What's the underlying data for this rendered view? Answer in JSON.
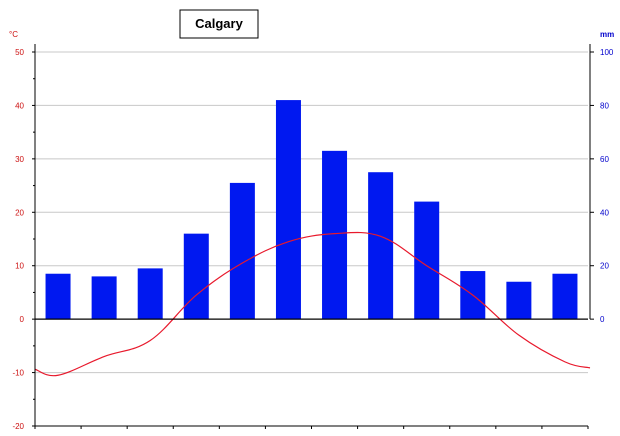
{
  "chart_data": {
    "type": "bar",
    "title": "Calgary",
    "categories": [
      "",
      "",
      "",
      "",
      "",
      "",
      "",
      "",
      "",
      "",
      "",
      ""
    ],
    "series": [
      {
        "type": "bar",
        "axis": "right",
        "values": [
          17,
          16,
          19,
          32,
          51,
          82,
          63,
          55,
          44,
          18,
          14,
          17
        ]
      },
      {
        "type": "line",
        "axis": "left",
        "values": [
          -10.5,
          -7,
          -4,
          4.5,
          10.5,
          14.5,
          16,
          15.5,
          10,
          4.5,
          -3,
          -8
        ]
      }
    ],
    "y_left": {
      "label": "°C",
      "range": [
        -20,
        50
      ],
      "ticks": [
        {
          "value": 50,
          "label": "50"
        },
        {
          "value": 40,
          "label": "40"
        },
        {
          "value": 30,
          "label": "30"
        },
        {
          "value": 20,
          "label": "20"
        },
        {
          "value": 10,
          "label": "10"
        },
        {
          "value": 0,
          "label": "0"
        },
        {
          "value": -10,
          "label": "-10"
        },
        {
          "value": -20,
          "label": "-20"
        }
      ]
    },
    "y_right": {
      "label": "mm",
      "range": [
        0,
        100
      ],
      "ticks": [
        {
          "value": 100,
          "label": "100"
        },
        {
          "value": 80,
          "label": "80"
        },
        {
          "value": 60,
          "label": "60"
        },
        {
          "value": 40,
          "label": "40"
        },
        {
          "value": 20,
          "label": "20"
        },
        {
          "value": 0,
          "label": "0"
        }
      ]
    },
    "grid": true,
    "legend": "none",
    "colors": {
      "bars": "#0018f0",
      "line": "#e8192c",
      "left_axis_text": "#cc1111",
      "right_axis_text": "#0000cc",
      "grid": "#c8c8c8"
    }
  }
}
